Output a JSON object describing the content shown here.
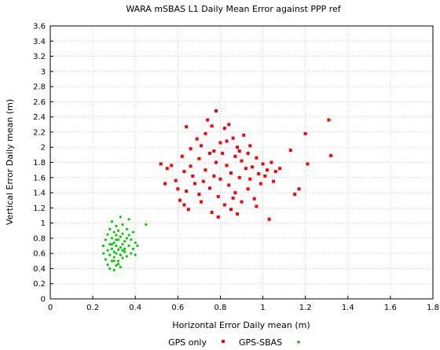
{
  "chart_data": {
    "type": "scatter",
    "title": "WARA mSBAS L1 Daily Mean Error against PPP ref",
    "xlabel": "Horizontal Error Daily mean (m)",
    "ylabel": "Vertical Error Daily mean (m)",
    "xlim": [
      0,
      1.8
    ],
    "ylim": [
      0,
      3.6
    ],
    "xticks": [
      "0",
      "0.2",
      "0.4",
      "0.6",
      "0.8",
      "1",
      "1.2",
      "1.4",
      "1.6",
      "1.8"
    ],
    "yticks": [
      "0",
      "0.2",
      "0.4",
      "0.6",
      "0.8",
      "1",
      "1.2",
      "1.4",
      "1.6",
      "1.8",
      "2",
      "2.2",
      "2.4",
      "2.6",
      "2.8",
      "3",
      "3.2",
      "3.4",
      "3.6"
    ],
    "grid": true,
    "legend_position": "bottom",
    "series": [
      {
        "name": "GPS only",
        "color": "#ff0000",
        "marker": "square",
        "points": [
          [
            0.52,
            1.78
          ],
          [
            0.54,
            1.52
          ],
          [
            0.55,
            1.72
          ],
          [
            0.57,
            1.76
          ],
          [
            0.59,
            1.56
          ],
          [
            0.6,
            1.45
          ],
          [
            0.61,
            1.3
          ],
          [
            0.62,
            1.88
          ],
          [
            0.63,
            1.68
          ],
          [
            0.64,
            1.42
          ],
          [
            0.64,
            2.27
          ],
          [
            0.65,
            1.18
          ],
          [
            0.66,
            1.98
          ],
          [
            0.67,
            1.62
          ],
          [
            0.68,
            1.52
          ],
          [
            0.69,
            2.11
          ],
          [
            0.7,
            1.38
          ],
          [
            0.7,
            1.85
          ],
          [
            0.71,
            2.02
          ],
          [
            0.72,
            1.55
          ],
          [
            0.73,
            2.18
          ],
          [
            0.73,
            1.7
          ],
          [
            0.74,
            2.36
          ],
          [
            0.75,
            1.46
          ],
          [
            0.75,
            1.92
          ],
          [
            0.76,
            1.14
          ],
          [
            0.76,
            2.28
          ],
          [
            0.77,
            1.62
          ],
          [
            0.78,
            2.48
          ],
          [
            0.78,
            1.8
          ],
          [
            0.79,
            1.35
          ],
          [
            0.8,
            2.06
          ],
          [
            0.8,
            1.58
          ],
          [
            0.81,
            1.92
          ],
          [
            0.82,
            1.24
          ],
          [
            0.82,
            2.25
          ],
          [
            0.83,
            1.76
          ],
          [
            0.84,
            1.5
          ],
          [
            0.84,
            2.3
          ],
          [
            0.85,
            1.18
          ],
          [
            0.85,
            1.66
          ],
          [
            0.86,
            2.12
          ],
          [
            0.87,
            1.88
          ],
          [
            0.87,
            1.4
          ],
          [
            0.88,
            1.12
          ],
          [
            0.88,
            2.0
          ],
          [
            0.89,
            1.6
          ],
          [
            0.9,
            1.82
          ],
          [
            0.9,
            1.28
          ],
          [
            0.91,
            2.16
          ],
          [
            0.92,
            1.72
          ],
          [
            0.93,
            1.45
          ],
          [
            0.93,
            1.92
          ],
          [
            0.94,
            1.58
          ],
          [
            0.95,
            1.74
          ],
          [
            0.96,
            1.32
          ],
          [
            0.97,
            1.86
          ],
          [
            0.98,
            1.65
          ],
          [
            0.99,
            1.52
          ],
          [
            1.0,
            1.78
          ],
          [
            1.01,
            1.62
          ],
          [
            1.02,
            1.7
          ],
          [
            1.03,
            1.05
          ],
          [
            1.04,
            1.8
          ],
          [
            1.05,
            1.55
          ],
          [
            1.06,
            1.68
          ],
          [
            1.08,
            1.72
          ],
          [
            1.13,
            1.96
          ],
          [
            1.15,
            1.38
          ],
          [
            1.17,
            1.45
          ],
          [
            1.2,
            2.18
          ],
          [
            1.21,
            1.78
          ],
          [
            1.31,
            2.36
          ],
          [
            1.32,
            1.89
          ],
          [
            0.63,
            1.24
          ],
          [
            0.66,
            1.75
          ],
          [
            0.71,
            1.28
          ],
          [
            0.77,
            1.95
          ],
          [
            0.79,
            1.08
          ],
          [
            0.83,
            2.08
          ],
          [
            0.86,
            1.33
          ],
          [
            0.89,
            1.95
          ],
          [
            0.94,
            2.02
          ],
          [
            0.97,
            1.22
          ]
        ]
      },
      {
        "name": "GPS-SBAS",
        "color": "#00cc00",
        "marker": "dot",
        "points": [
          [
            0.25,
            0.6
          ],
          [
            0.25,
            0.7
          ],
          [
            0.26,
            0.52
          ],
          [
            0.26,
            0.78
          ],
          [
            0.27,
            0.64
          ],
          [
            0.27,
            0.85
          ],
          [
            0.27,
            0.45
          ],
          [
            0.28,
            0.58
          ],
          [
            0.28,
            0.72
          ],
          [
            0.28,
            0.92
          ],
          [
            0.28,
            0.4
          ],
          [
            0.29,
            0.5
          ],
          [
            0.29,
            0.66
          ],
          [
            0.29,
            0.8
          ],
          [
            0.29,
            1.02
          ],
          [
            0.3,
            0.38
          ],
          [
            0.3,
            0.55
          ],
          [
            0.3,
            0.62
          ],
          [
            0.3,
            0.74
          ],
          [
            0.3,
            0.88
          ],
          [
            0.31,
            0.44
          ],
          [
            0.31,
            0.6
          ],
          [
            0.31,
            0.7
          ],
          [
            0.31,
            0.84
          ],
          [
            0.31,
            0.96
          ],
          [
            0.32,
            0.5
          ],
          [
            0.32,
            0.65
          ],
          [
            0.32,
            0.78
          ],
          [
            0.32,
            0.9
          ],
          [
            0.33,
            0.42
          ],
          [
            0.33,
            0.58
          ],
          [
            0.33,
            0.68
          ],
          [
            0.33,
            0.82
          ],
          [
            0.33,
            1.08
          ],
          [
            0.34,
            0.54
          ],
          [
            0.34,
            0.72
          ],
          [
            0.34,
            0.86
          ],
          [
            0.34,
            0.98
          ],
          [
            0.35,
            0.62
          ],
          [
            0.35,
            0.76
          ],
          [
            0.35,
            0.66
          ],
          [
            0.36,
            0.8
          ],
          [
            0.36,
            0.92
          ],
          [
            0.36,
            0.56
          ],
          [
            0.37,
            0.7
          ],
          [
            0.37,
            0.84
          ],
          [
            0.37,
            1.05
          ],
          [
            0.38,
            0.6
          ],
          [
            0.38,
            0.78
          ],
          [
            0.39,
            0.66
          ],
          [
            0.39,
            0.88
          ],
          [
            0.4,
            0.74
          ],
          [
            0.4,
            0.58
          ],
          [
            0.41,
            0.7
          ],
          [
            0.45,
            0.98
          ],
          [
            0.3,
            0.5
          ],
          [
            0.31,
            0.78
          ],
          [
            0.32,
            0.46
          ],
          [
            0.29,
            0.72
          ],
          [
            0.34,
            0.64
          ]
        ]
      }
    ]
  }
}
